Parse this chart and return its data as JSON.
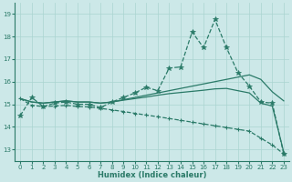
{
  "xlabel": "Humidex (Indice chaleur)",
  "x_values": [
    0,
    1,
    2,
    3,
    4,
    5,
    6,
    7,
    8,
    9,
    10,
    11,
    12,
    13,
    14,
    15,
    16,
    17,
    18,
    19,
    20,
    21,
    22,
    23
  ],
  "main_line_y": [
    14.5,
    15.3,
    14.9,
    15.05,
    15.1,
    15.0,
    15.0,
    14.85,
    15.1,
    15.3,
    15.5,
    15.75,
    15.6,
    16.6,
    16.65,
    18.2,
    17.5,
    18.75,
    17.5,
    16.4,
    15.8,
    15.1,
    15.05,
    12.8
  ],
  "upper_trend_y": [
    15.25,
    15.1,
    15.05,
    15.1,
    15.15,
    15.1,
    15.1,
    15.05,
    15.1,
    15.2,
    15.3,
    15.4,
    15.5,
    15.6,
    15.7,
    15.8,
    15.9,
    16.0,
    16.1,
    16.2,
    16.3,
    16.1,
    15.55,
    15.15
  ],
  "lower_trend_y": [
    15.25,
    15.1,
    15.05,
    15.1,
    15.15,
    15.1,
    15.1,
    15.05,
    15.1,
    15.18,
    15.25,
    15.32,
    15.4,
    15.47,
    15.52,
    15.57,
    15.62,
    15.68,
    15.7,
    15.6,
    15.5,
    15.05,
    14.92,
    12.88
  ],
  "diagonal_y": [
    15.25,
    14.95,
    14.9,
    14.92,
    14.95,
    14.9,
    14.88,
    14.82,
    14.75,
    14.68,
    14.6,
    14.52,
    14.45,
    14.37,
    14.29,
    14.21,
    14.13,
    14.05,
    13.97,
    13.89,
    13.81,
    13.5,
    13.2,
    12.8
  ],
  "line_color": "#2a7a68",
  "bg_color": "#cce8e8",
  "grid_color": "#aad4d0",
  "ylim": [
    12.5,
    19.5
  ],
  "yticks": [
    13,
    14,
    15,
    16,
    17,
    18,
    19
  ],
  "xlim": [
    -0.5,
    23.5
  ],
  "xticks": [
    0,
    1,
    2,
    3,
    4,
    5,
    6,
    7,
    8,
    9,
    10,
    11,
    12,
    13,
    14,
    15,
    16,
    17,
    18,
    19,
    20,
    21,
    22,
    23
  ]
}
